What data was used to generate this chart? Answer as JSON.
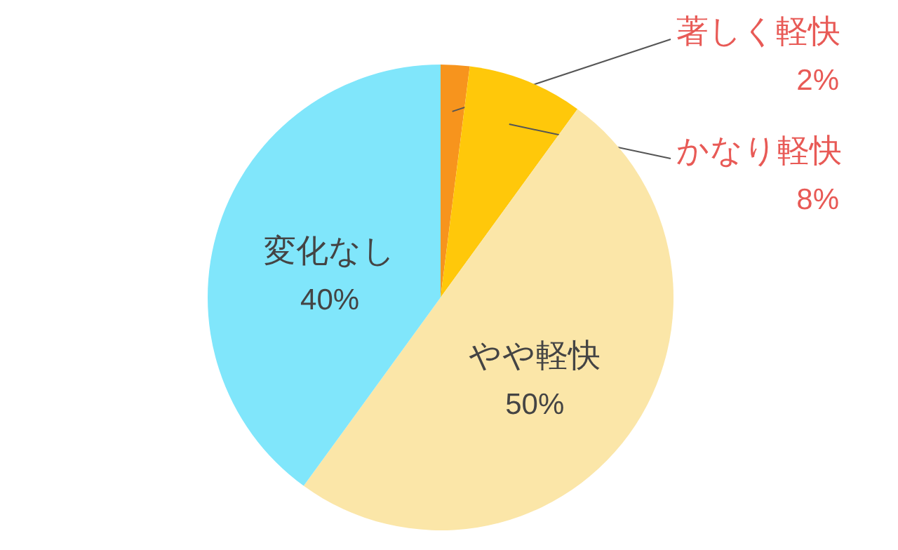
{
  "chart_data": {
    "type": "pie",
    "categories": [
      "著しく軽快",
      "かなり軽快",
      "やや軽快",
      "変化なし"
    ],
    "values": [
      2,
      8,
      50,
      40
    ],
    "colors": [
      "#f7941d",
      "#ffc80a",
      "#fbe6a8",
      "#80e6fb"
    ],
    "value_labels": [
      "2%",
      "8%",
      "50%",
      "40%"
    ]
  }
}
